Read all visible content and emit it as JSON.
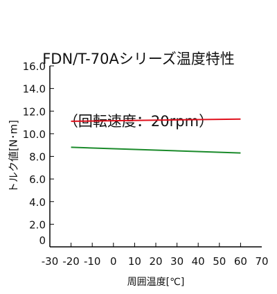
{
  "chart_data": {
    "type": "line",
    "title": "FDN/T-70Aシリーズ温度特性",
    "subtitle": "（回転速度：20rpm）",
    "xlabel": "周囲温度[℃]",
    "ylabel": "トルク値[N･m]",
    "xlim": [
      -30,
      70
    ],
    "ylim": [
      0,
      16
    ],
    "x_ticks": [
      "-30",
      "-20",
      "-10",
      "0",
      "10",
      "20",
      "30",
      "40",
      "50",
      "60",
      "70"
    ],
    "y_ticks": [
      "0",
      "2.0",
      "4.0",
      "6.0",
      "8.0",
      "10.0",
      "12.0",
      "14.0",
      "16.0"
    ],
    "grid": false,
    "series": [
      {
        "color": "#e0101c",
        "x": [
          -20,
          60
        ],
        "y": [
          11.1,
          11.3
        ]
      },
      {
        "color": "#1a8a2a",
        "x": [
          -20,
          60
        ],
        "y": [
          8.8,
          8.3
        ]
      }
    ]
  }
}
